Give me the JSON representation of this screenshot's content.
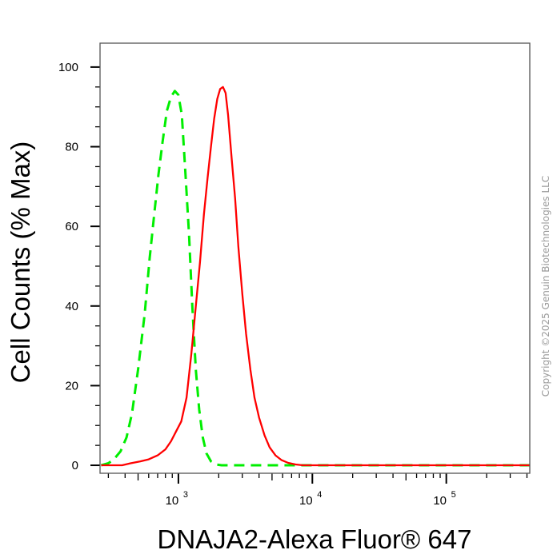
{
  "chart_data": {
    "type": "line",
    "title": "",
    "xlabel": "DNAJA2-Alexa Fluor® 647",
    "ylabel": "Cell Counts (% Max)",
    "xscale": "log",
    "xlim": [
      260,
      420000
    ],
    "ylim": [
      -2,
      106
    ],
    "grid": false,
    "legend": "none",
    "x_major_ticks": [
      {
        "value": 1000,
        "base": "10",
        "exp": "3"
      },
      {
        "value": 10000,
        "base": "10",
        "exp": "4"
      },
      {
        "value": 100000,
        "base": "10",
        "exp": "5"
      }
    ],
    "y_major_ticks": [
      {
        "value": 0,
        "label": "0"
      },
      {
        "value": 20,
        "label": "20"
      },
      {
        "value": 40,
        "label": "40"
      },
      {
        "value": 60,
        "label": "60"
      },
      {
        "value": 80,
        "label": "80"
      },
      {
        "value": 100,
        "label": "100"
      }
    ],
    "series": [
      {
        "color": "#00ee00",
        "line_style": "dashed",
        "points": [
          [
            265,
            0
          ],
          [
            300,
            0.5
          ],
          [
            330,
            1.5
          ],
          [
            370,
            3.5
          ],
          [
            410,
            7
          ],
          [
            450,
            13
          ],
          [
            500,
            24
          ],
          [
            560,
            38
          ],
          [
            610,
            52
          ],
          [
            660,
            63
          ],
          [
            710,
            73
          ],
          [
            760,
            81
          ],
          [
            820,
            89
          ],
          [
            880,
            92.5
          ],
          [
            940,
            94
          ],
          [
            1000,
            93
          ],
          [
            1060,
            88
          ],
          [
            1120,
            75
          ],
          [
            1200,
            58
          ],
          [
            1270,
            40
          ],
          [
            1350,
            24
          ],
          [
            1430,
            14
          ],
          [
            1520,
            7
          ],
          [
            1620,
            3
          ],
          [
            1750,
            1
          ],
          [
            1900,
            0.2
          ],
          [
            2100,
            0
          ],
          [
            420000,
            0
          ]
        ]
      },
      {
        "color": "#ff0000",
        "line_style": "solid",
        "points": [
          [
            265,
            0
          ],
          [
            380,
            0
          ],
          [
            440,
            0.5
          ],
          [
            520,
            1
          ],
          [
            600,
            1.5
          ],
          [
            700,
            2.5
          ],
          [
            800,
            4
          ],
          [
            880,
            6
          ],
          [
            960,
            8.5
          ],
          [
            1050,
            11
          ],
          [
            1150,
            17
          ],
          [
            1250,
            28
          ],
          [
            1350,
            40
          ],
          [
            1450,
            51
          ],
          [
            1550,
            63
          ],
          [
            1650,
            72
          ],
          [
            1750,
            80
          ],
          [
            1850,
            87
          ],
          [
            1950,
            92
          ],
          [
            2050,
            94.5
          ],
          [
            2150,
            95
          ],
          [
            2250,
            93.5
          ],
          [
            2350,
            88
          ],
          [
            2500,
            77
          ],
          [
            2650,
            67
          ],
          [
            2800,
            55
          ],
          [
            3000,
            43
          ],
          [
            3200,
            33
          ],
          [
            3450,
            24
          ],
          [
            3700,
            17
          ],
          [
            4000,
            12
          ],
          [
            4400,
            7.5
          ],
          [
            4800,
            4.5
          ],
          [
            5300,
            2.5
          ],
          [
            5900,
            1.3
          ],
          [
            6600,
            0.6
          ],
          [
            7500,
            0.2
          ],
          [
            8500,
            0
          ],
          [
            420000,
            0
          ]
        ]
      }
    ]
  },
  "copyright": "Copyright ©2025 Genuin Biotechnologies LLC"
}
